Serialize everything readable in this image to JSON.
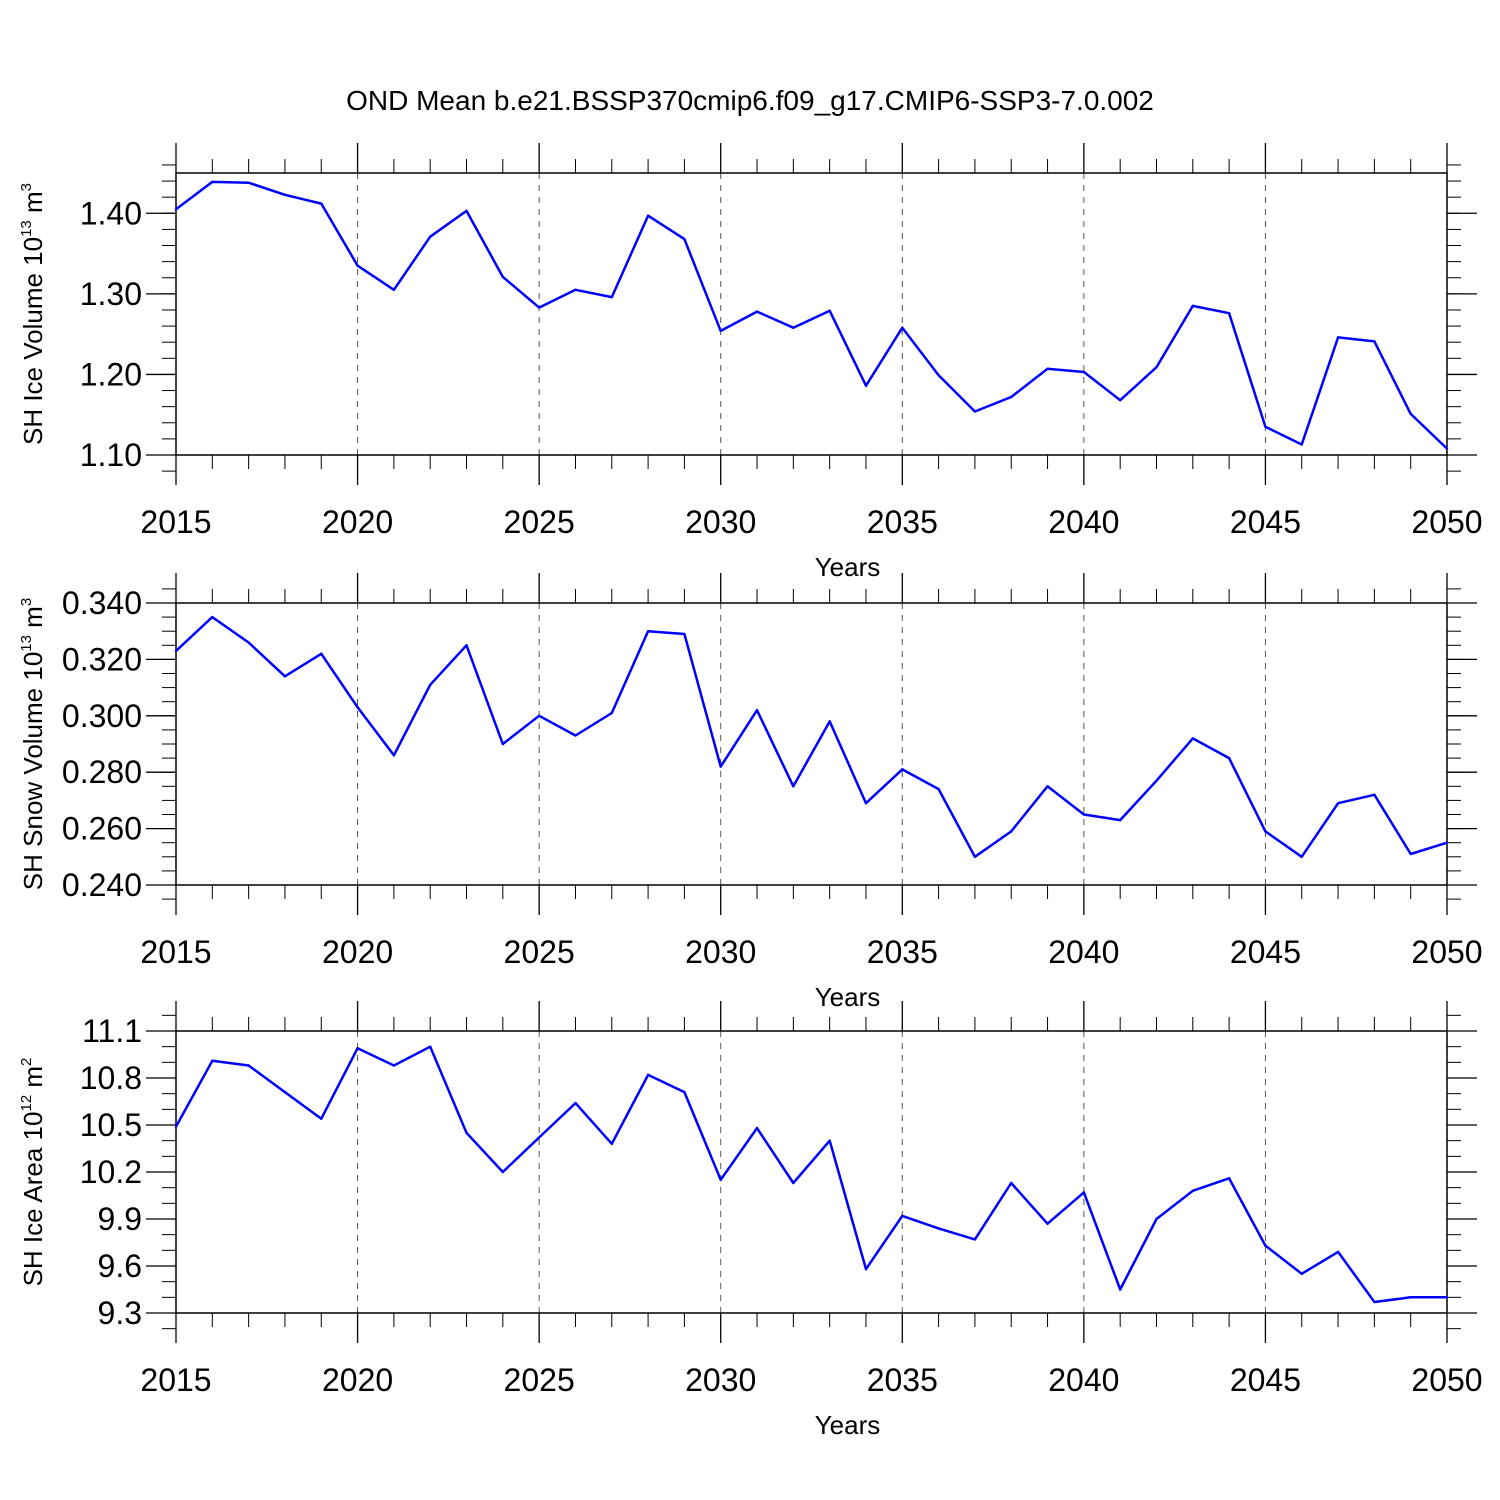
{
  "figure": {
    "title": "OND Mean b.e21.BSSP370cmip6.f09_g17.CMIP6-SSP3-7.0.002"
  },
  "chart_data": [
    {
      "type": "line",
      "title": "",
      "xlabel": "Years",
      "ylabel": {
        "text": "SH Ice Volume 10",
        "exp": "13",
        "unit": " m",
        "unit_exp": "3"
      },
      "xlim": [
        2015,
        2050
      ],
      "ylim": [
        1.1,
        1.45
      ],
      "x_major_ticks": [
        2015,
        2020,
        2025,
        2030,
        2035,
        2040,
        2045,
        2050
      ],
      "x_tick_labels": [
        "2015",
        "2020",
        "2025",
        "2030",
        "2035",
        "2040",
        "2045",
        "2050"
      ],
      "y_major_ticks": [
        1.1,
        1.2,
        1.3,
        1.4
      ],
      "y_tick_labels": [
        "1.10",
        "1.20",
        "1.30",
        "1.40"
      ],
      "y_minor_step": 0.02,
      "grid": "vertical dashed at major x ticks",
      "color": "#0000ff",
      "x": [
        2015,
        2016,
        2017,
        2018,
        2019,
        2020,
        2021,
        2022,
        2023,
        2024,
        2025,
        2026,
        2027,
        2028,
        2029,
        2030,
        2031,
        2032,
        2033,
        2034,
        2035,
        2036,
        2037,
        2038,
        2039,
        2040,
        2041,
        2042,
        2043,
        2044,
        2045,
        2046,
        2047,
        2048,
        2049,
        2050
      ],
      "values": [
        1.405,
        1.439,
        1.438,
        1.423,
        1.412,
        1.335,
        1.305,
        1.371,
        1.403,
        1.321,
        1.283,
        1.305,
        1.296,
        1.397,
        1.368,
        1.254,
        1.278,
        1.258,
        1.279,
        1.186,
        1.258,
        1.199,
        1.154,
        1.172,
        1.207,
        1.203,
        1.168,
        1.209,
        1.285,
        1.276,
        1.135,
        1.113,
        1.246,
        1.241,
        1.151,
        1.108
      ]
    },
    {
      "type": "line",
      "title": "",
      "xlabel": "Years",
      "ylabel": {
        "text": "SH Snow Volume 10",
        "exp": "13",
        "unit": " m",
        "unit_exp": "3"
      },
      "xlim": [
        2015,
        2050
      ],
      "ylim": [
        0.24,
        0.34
      ],
      "x_major_ticks": [
        2015,
        2020,
        2025,
        2030,
        2035,
        2040,
        2045,
        2050
      ],
      "x_tick_labels": [
        "2015",
        "2020",
        "2025",
        "2030",
        "2035",
        "2040",
        "2045",
        "2050"
      ],
      "y_major_ticks": [
        0.24,
        0.26,
        0.28,
        0.3,
        0.32,
        0.34
      ],
      "y_tick_labels": [
        "0.240",
        "0.260",
        "0.280",
        "0.300",
        "0.320",
        "0.340"
      ],
      "y_minor_step": 0.005,
      "grid": "vertical dashed at major x ticks",
      "color": "#0000ff",
      "x": [
        2015,
        2016,
        2017,
        2018,
        2019,
        2020,
        2021,
        2022,
        2023,
        2024,
        2025,
        2026,
        2027,
        2028,
        2029,
        2030,
        2031,
        2032,
        2033,
        2034,
        2035,
        2036,
        2037,
        2038,
        2039,
        2040,
        2041,
        2042,
        2043,
        2044,
        2045,
        2046,
        2047,
        2048,
        2049,
        2050
      ],
      "values": [
        0.323,
        0.335,
        0.326,
        0.314,
        0.322,
        0.303,
        0.286,
        0.311,
        0.325,
        0.29,
        0.3,
        0.293,
        0.301,
        0.33,
        0.329,
        0.282,
        0.302,
        0.275,
        0.298,
        0.269,
        0.281,
        0.274,
        0.25,
        0.259,
        0.275,
        0.265,
        0.263,
        0.277,
        0.292,
        0.285,
        0.259,
        0.25,
        0.269,
        0.272,
        0.251,
        0.255
      ]
    },
    {
      "type": "line",
      "title": "",
      "xlabel": "Years",
      "ylabel": {
        "text": "SH Ice Area 10",
        "exp": "12",
        "unit": " m",
        "unit_exp": "2"
      },
      "xlim": [
        2015,
        2050
      ],
      "ylim": [
        9.3,
        11.1
      ],
      "x_major_ticks": [
        2015,
        2020,
        2025,
        2030,
        2035,
        2040,
        2045,
        2050
      ],
      "x_tick_labels": [
        "2015",
        "2020",
        "2025",
        "2030",
        "2035",
        "2040",
        "2045",
        "2050"
      ],
      "y_major_ticks": [
        9.3,
        9.6,
        9.9,
        10.2,
        10.5,
        10.8,
        11.1
      ],
      "y_tick_labels": [
        "9.3",
        "9.6",
        "9.9",
        "10.2",
        "10.5",
        "10.8",
        "11.1"
      ],
      "y_minor_step": 0.1,
      "grid": "vertical dashed at major x ticks",
      "color": "#0000ff",
      "x": [
        2015,
        2016,
        2017,
        2018,
        2019,
        2020,
        2021,
        2022,
        2023,
        2024,
        2025,
        2026,
        2027,
        2028,
        2029,
        2030,
        2031,
        2032,
        2033,
        2034,
        2035,
        2036,
        2037,
        2038,
        2039,
        2040,
        2041,
        2042,
        2043,
        2044,
        2045,
        2046,
        2047,
        2048,
        2049,
        2050
      ],
      "values": [
        10.49,
        10.91,
        10.88,
        10.71,
        10.54,
        10.99,
        10.88,
        11.0,
        10.45,
        10.2,
        10.42,
        10.64,
        10.38,
        10.82,
        10.71,
        10.15,
        10.48,
        10.13,
        10.4,
        9.58,
        9.92,
        9.84,
        9.77,
        10.13,
        9.87,
        10.07,
        9.45,
        9.9,
        10.08,
        10.16,
        9.73,
        9.55,
        9.69,
        9.37,
        9.4,
        9.4
      ]
    }
  ]
}
